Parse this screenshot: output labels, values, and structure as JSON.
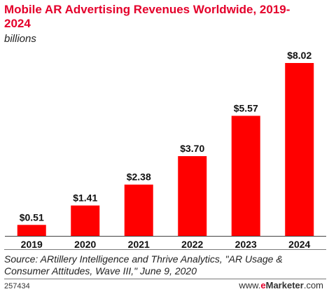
{
  "title": "Mobile AR Advertising Revenues Worldwide, 2019-2024",
  "subtitle": "billions",
  "source": "Source: ARtillery Intelligence and Thrive Analytics, \"AR Usage & Consumer Attitudes, Wave III,\" June 9, 2020",
  "footer": {
    "chart_id": "257434",
    "brand_prefix": "www.",
    "brand_e": "e",
    "brand_name": "Marketer",
    "brand_suffix": ".com"
  },
  "colors": {
    "bar": "#ff0000",
    "title": "#e4002b",
    "axis": "#444444"
  },
  "chart_data": {
    "type": "bar",
    "title": "Mobile AR Advertising Revenues Worldwide, 2019-2024",
    "subtitle": "billions",
    "categories": [
      "2019",
      "2020",
      "2021",
      "2022",
      "2023",
      "2024"
    ],
    "values": [
      0.51,
      1.41,
      2.38,
      3.7,
      5.57,
      8.02
    ],
    "value_labels": [
      "$0.51",
      "$1.41",
      "$2.38",
      "$3.70",
      "$5.57",
      "$8.02"
    ],
    "ylim": [
      0,
      8.02
    ],
    "grid": false,
    "legend": "none"
  }
}
